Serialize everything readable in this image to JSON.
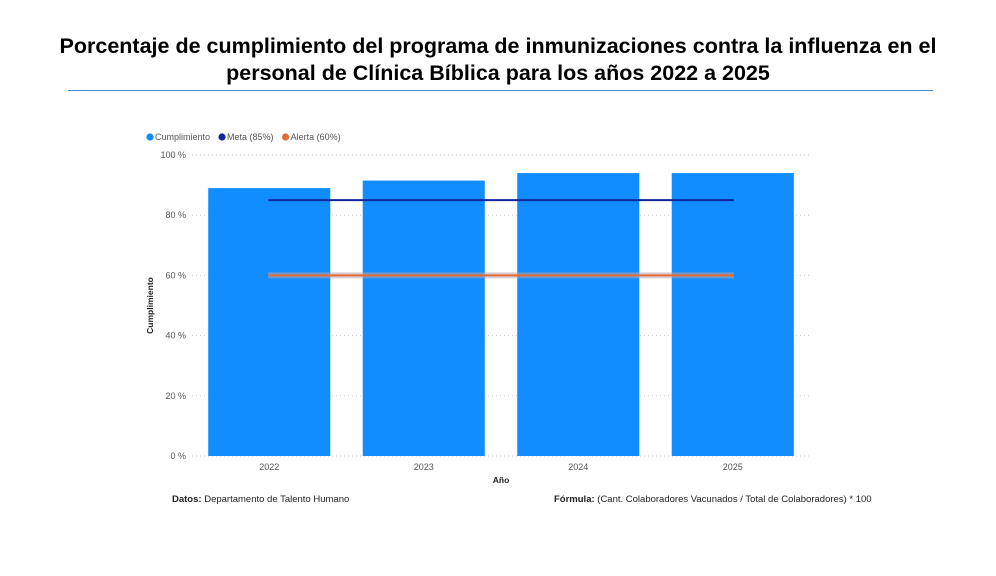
{
  "page": {
    "title_line1": "Porcentaje de cumplimiento del programa de inmunizaciones contra la influenza en el",
    "title_line2": "personal de Clínica Bíblica para los años 2022 a 2025",
    "footer_left_label": "Datos:",
    "footer_left_text": "Departamento de Talento Humano",
    "footer_right_label": "Fórmula:",
    "footer_right_text": "(Cant. Colaboradores Vacunados / Total de Colaboradores) * 100"
  },
  "chart_data": {
    "type": "bar",
    "title": "Porcentaje de cumplimiento del programa de inmunizaciones contra la influenza en el personal de Clínica Bíblica para los años 2022 a 2025",
    "xlabel": "Año",
    "ylabel": "Cumplimiento",
    "categories": [
      "2022",
      "2023",
      "2024",
      "2025"
    ],
    "ylim": [
      0,
      100
    ],
    "yticks": [
      0,
      20,
      40,
      60,
      80,
      100
    ],
    "ytick_labels": [
      "0 %",
      "20 %",
      "40 %",
      "60 %",
      "80 %",
      "100 %"
    ],
    "grid": true,
    "legend_position": "top-left",
    "series": [
      {
        "name": "Cumplimiento",
        "type": "bar",
        "color": "#118dff",
        "values": [
          89,
          91.5,
          94,
          94
        ]
      },
      {
        "name": "Meta (85%)",
        "type": "line",
        "color": "#12239e",
        "values": [
          85,
          85,
          85,
          85
        ]
      },
      {
        "name": "Alerta (60%)",
        "type": "line",
        "color": "#e66c37",
        "values": [
          60,
          60,
          60,
          60
        ]
      }
    ]
  }
}
